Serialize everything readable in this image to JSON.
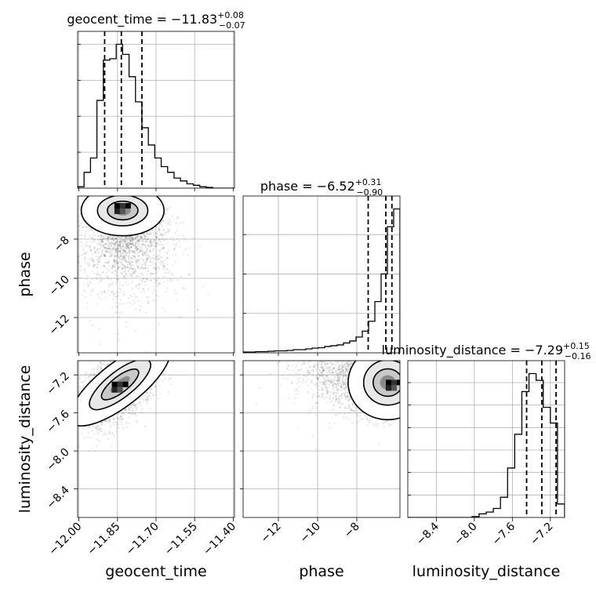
{
  "chart_data": {
    "type": "corner",
    "parameters": [
      "geocent_time",
      "phase",
      "luminosity_distance"
    ],
    "titles": [
      {
        "parameter": "geocent_time",
        "prefix": "geocent_time = ",
        "median": "−11.83",
        "plus": "+0.08",
        "minus": "−0.07"
      },
      {
        "parameter": "phase",
        "prefix": "phase = ",
        "median": "−6.52",
        "plus": "+0.31",
        "minus": "−0.90"
      },
      {
        "parameter": "luminosity_distance",
        "prefix": "luminosity_distance = ",
        "median": "−7.29",
        "plus": "+0.15",
        "minus": "−0.16"
      }
    ],
    "axis_labels": {
      "x": [
        "geocent_time",
        "phase",
        "luminosity_distance"
      ],
      "y": [
        "phase",
        "luminosity_distance"
      ]
    },
    "ranges": {
      "geocent_time": [
        -12.005,
        -11.395
      ],
      "phase": [
        -13.8,
        -5.8
      ],
      "luminosity_distance": [
        -8.7,
        -7.05
      ]
    },
    "ticks": {
      "geocent_time": {
        "values": [
          -12.0,
          -11.85,
          -11.7,
          -11.55,
          -11.4
        ],
        "labels": [
          "−12.00",
          "−11.85",
          "−11.70",
          "−11.55",
          "−11.40"
        ]
      },
      "phase": {
        "values": [
          -12,
          -10,
          -8
        ],
        "labels": [
          "−12",
          "−10",
          "−8"
        ]
      },
      "luminosity_distance": {
        "values": [
          -8.4,
          -8.0,
          -7.6,
          -7.2
        ],
        "labels": [
          "−8.4",
          "−8.0",
          "−7.6",
          "−7.2"
        ]
      }
    },
    "quantiles": {
      "geocent_time": [
        -11.9,
        -11.835,
        -11.755
      ],
      "phase": [
        -7.42,
        -6.52,
        -6.21
      ],
      "luminosity_distance": [
        -7.45,
        -7.29,
        -7.14
      ]
    },
    "histograms": {
      "geocent_time": {
        "edges": [
          -12.005,
          -11.98,
          -11.955,
          -11.93,
          -11.905,
          -11.88,
          -11.855,
          -11.83,
          -11.805,
          -11.78,
          -11.755,
          -11.73,
          -11.705,
          -11.68,
          -11.655,
          -11.63,
          -11.605,
          -11.58,
          -11.555,
          -11.53,
          -11.505,
          -11.48,
          -11.455,
          -11.43,
          -11.395
        ],
        "counts": [
          2,
          22,
          42,
          122,
          178,
          180,
          200,
          186,
          155,
          120,
          84,
          60,
          42,
          30,
          22,
          14,
          10,
          6,
          4,
          2,
          1,
          0,
          0,
          0
        ],
        "yticks": [
          0,
          50,
          100,
          150,
          200
        ]
      },
      "phase": {
        "edges": [
          -13.8,
          -13.48,
          -13.16,
          -12.84,
          -12.52,
          -12.2,
          -11.88,
          -11.56,
          -11.24,
          -10.92,
          -10.6,
          -10.28,
          -9.96,
          -9.64,
          -9.32,
          -9.0,
          -8.68,
          -8.36,
          -8.04,
          -7.72,
          -7.4,
          -7.08,
          -6.76,
          -6.44,
          -6.12,
          -5.8
        ],
        "counts": [
          2,
          2,
          3,
          3,
          4,
          5,
          5,
          6,
          8,
          8,
          10,
          12,
          13,
          16,
          18,
          20,
          25,
          30,
          40,
          55,
          80,
          130,
          200,
          320,
          365
        ],
        "yticks": [
          0,
          100,
          200,
          300
        ]
      },
      "luminosity_distance": {
        "edges": [
          -8.7,
          -8.625,
          -8.55,
          -8.475,
          -8.4,
          -8.325,
          -8.25,
          -8.175,
          -8.1,
          -8.025,
          -7.95,
          -7.875,
          -7.8,
          -7.725,
          -7.65,
          -7.575,
          -7.5,
          -7.425,
          -7.35,
          -7.275,
          -7.2,
          -7.125,
          -7.05
        ],
        "counts": [
          0,
          0,
          0,
          0,
          0,
          0,
          0,
          0,
          0,
          2,
          8,
          12,
          20,
          45,
          110,
          185,
          280,
          320,
          305,
          245,
          210,
          30
        ],
        "yticks": [
          0,
          50,
          100,
          150,
          200,
          250,
          300
        ]
      }
    },
    "pairs": [
      {
        "x": "geocent_time",
        "y": "phase",
        "mode": [
          -11.83,
          -6.3
        ],
        "spread": [
          0.07,
          1.6
        ],
        "points": 2600
      },
      {
        "x": "geocent_time",
        "y": "luminosity_distance",
        "mode": [
          -11.84,
          -7.3
        ],
        "spread": [
          0.08,
          0.18
        ],
        "points": 2600
      },
      {
        "x": "phase",
        "y": "luminosity_distance",
        "mode": [
          -6.1,
          -7.28
        ],
        "spread": [
          1.6,
          0.17
        ],
        "points": 2600
      }
    ],
    "grid": true
  }
}
